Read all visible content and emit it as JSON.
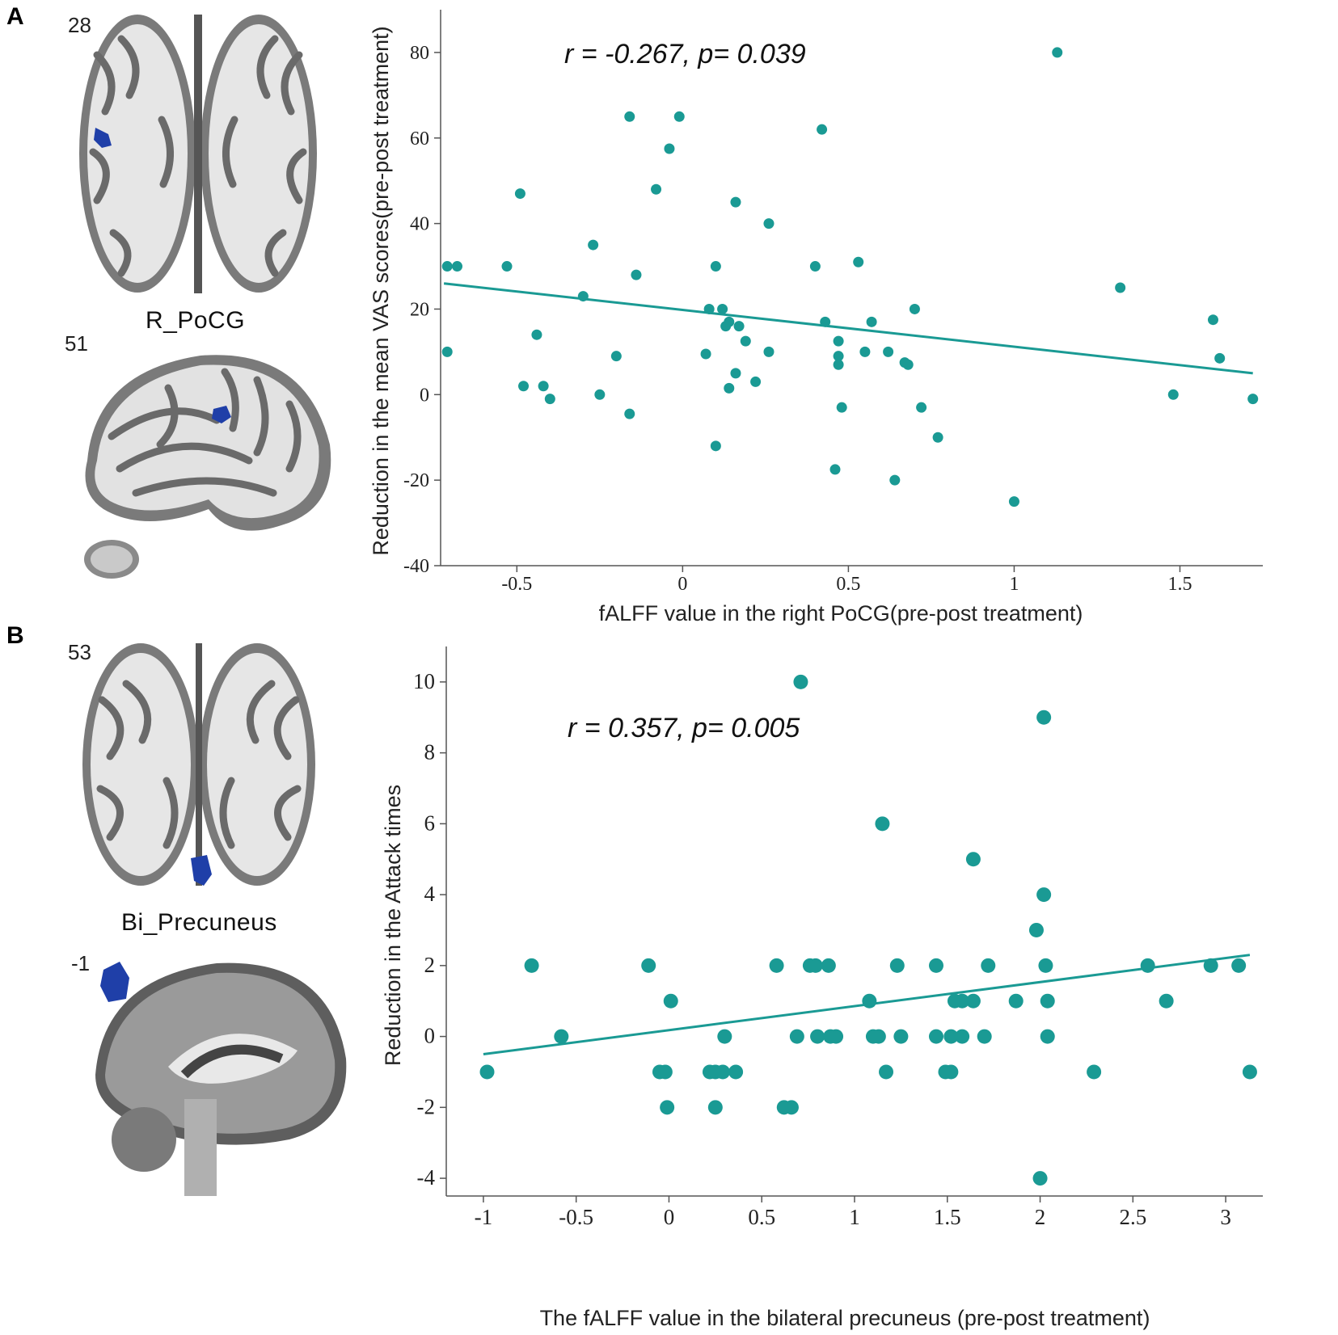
{
  "panels": {
    "a": {
      "letter": "A",
      "top_slice": "28",
      "region": "R_PoCG",
      "bottom_slice": "51"
    },
    "b": {
      "letter": "B",
      "top_slice": "53",
      "region": "Bi_Precuneus",
      "bottom_slice": "-1"
    }
  },
  "colors": {
    "point": "#1a9a94",
    "line": "#1a9a94",
    "roi": "#1f3fa8",
    "brain_gray": "#8d8d8d"
  },
  "chart_data": [
    {
      "type": "scatter",
      "title": "",
      "annotation": "r = -0.267, p= 0.039",
      "xlabel": "fALFF value in the right PoCG(pre-post treatment)",
      "ylabel": "Reduction in the mean VAS scores(pre-post treatment)",
      "xlim": [
        -0.73,
        1.75
      ],
      "ylim": [
        -40,
        90
      ],
      "xticks": [
        -0.5,
        0,
        0.5,
        1,
        1.5
      ],
      "xtick_labels": [
        "-0.5",
        "0",
        "0.5",
        "1",
        "1.5"
      ],
      "yticks": [
        -40,
        -20,
        0,
        20,
        40,
        60,
        80
      ],
      "ytick_labels": [
        "-40",
        "-20",
        "0",
        "20",
        "40",
        "60",
        "80"
      ],
      "grid": false,
      "fit_line": {
        "x": [
          -0.72,
          1.72
        ],
        "y": [
          26,
          5
        ]
      },
      "points": [
        [
          -0.71,
          30
        ],
        [
          -0.68,
          30
        ],
        [
          -0.53,
          30
        ],
        [
          -0.71,
          10
        ],
        [
          -0.49,
          47
        ],
        [
          -0.48,
          2
        ],
        [
          -0.44,
          14
        ],
        [
          -0.42,
          2
        ],
        [
          -0.4,
          -1
        ],
        [
          -0.3,
          23
        ],
        [
          -0.27,
          35
        ],
        [
          -0.25,
          0
        ],
        [
          -0.2,
          9
        ],
        [
          -0.16,
          65
        ],
        [
          -0.16,
          -4.5
        ],
        [
          -0.14,
          28
        ],
        [
          -0.08,
          48
        ],
        [
          -0.04,
          57.5
        ],
        [
          -0.01,
          65
        ],
        [
          0.07,
          9.5
        ],
        [
          0.08,
          20
        ],
        [
          0.1,
          30
        ],
        [
          0.1,
          -12
        ],
        [
          0.12,
          20
        ],
        [
          0.13,
          16
        ],
        [
          0.14,
          17
        ],
        [
          0.14,
          1.5
        ],
        [
          0.16,
          45
        ],
        [
          0.16,
          5
        ],
        [
          0.17,
          16
        ],
        [
          0.19,
          12.5
        ],
        [
          0.22,
          3
        ],
        [
          0.26,
          40
        ],
        [
          0.26,
          10
        ],
        [
          0.4,
          30
        ],
        [
          0.42,
          62
        ],
        [
          0.43,
          17
        ],
        [
          0.47,
          12.5
        ],
        [
          0.47,
          9
        ],
        [
          0.47,
          7
        ],
        [
          0.48,
          -3
        ],
        [
          0.46,
          -17.5
        ],
        [
          0.53,
          31
        ],
        [
          0.55,
          10
        ],
        [
          0.57,
          17
        ],
        [
          0.62,
          10
        ],
        [
          0.64,
          -20
        ],
        [
          0.67,
          7.5
        ],
        [
          0.68,
          7
        ],
        [
          0.7,
          20
        ],
        [
          0.72,
          -3
        ],
        [
          0.77,
          -10
        ],
        [
          1.0,
          -25
        ],
        [
          1.13,
          80
        ],
        [
          1.32,
          25
        ],
        [
          1.48,
          0
        ],
        [
          1.6,
          17.5
        ],
        [
          1.62,
          8.5
        ],
        [
          1.72,
          -1
        ]
      ]
    },
    {
      "type": "scatter",
      "title": "",
      "annotation": "r = 0.357, p= 0.005",
      "xlabel": "The fALFF value in the bilateral precuneus (pre-post treatment)",
      "ylabel": "Reduction in the Attack times",
      "xlim": [
        -1.2,
        3.2
      ],
      "ylim": [
        -4.5,
        11
      ],
      "xticks": [
        -1,
        -0.5,
        0,
        0.5,
        1,
        1.5,
        2,
        2.5,
        3
      ],
      "xtick_labels": [
        "-1",
        "-0.5",
        "0",
        "0.5",
        "1",
        "1.5",
        "2",
        "2.5",
        "3"
      ],
      "yticks": [
        -4,
        -2,
        0,
        2,
        4,
        6,
        8,
        10
      ],
      "ytick_labels": [
        "-4",
        "-2",
        "0",
        "2",
        "4",
        "6",
        "8",
        "10"
      ],
      "grid": false,
      "fit_line": {
        "x": [
          -1.0,
          3.13
        ],
        "y": [
          -0.5,
          2.3
        ]
      },
      "points": [
        [
          -0.98,
          -1
        ],
        [
          -0.74,
          2
        ],
        [
          -0.58,
          0
        ],
        [
          -0.11,
          2
        ],
        [
          -0.05,
          -1
        ],
        [
          -0.02,
          -1
        ],
        [
          -0.01,
          -2
        ],
        [
          0.01,
          1
        ],
        [
          0.22,
          -1
        ],
        [
          0.25,
          -2
        ],
        [
          0.25,
          -1
        ],
        [
          0.29,
          -1
        ],
        [
          0.3,
          0
        ],
        [
          0.36,
          -1
        ],
        [
          0.58,
          2
        ],
        [
          0.62,
          -2
        ],
        [
          0.66,
          -2
        ],
        [
          0.69,
          0
        ],
        [
          0.71,
          10
        ],
        [
          0.76,
          2
        ],
        [
          0.79,
          2
        ],
        [
          0.8,
          0
        ],
        [
          0.86,
          2
        ],
        [
          0.87,
          0
        ],
        [
          0.9,
          0
        ],
        [
          1.08,
          1
        ],
        [
          1.1,
          0
        ],
        [
          1.13,
          0
        ],
        [
          1.15,
          6
        ],
        [
          1.17,
          -1
        ],
        [
          1.23,
          2
        ],
        [
          1.25,
          0
        ],
        [
          1.44,
          2
        ],
        [
          1.44,
          0
        ],
        [
          1.49,
          -1
        ],
        [
          1.52,
          0
        ],
        [
          1.52,
          -1
        ],
        [
          1.54,
          1
        ],
        [
          1.58,
          1
        ],
        [
          1.58,
          0
        ],
        [
          1.64,
          1
        ],
        [
          1.64,
          5
        ],
        [
          1.7,
          0
        ],
        [
          1.72,
          2
        ],
        [
          1.87,
          1
        ],
        [
          1.98,
          3
        ],
        [
          2.0,
          -4
        ],
        [
          2.02,
          9
        ],
        [
          2.02,
          4
        ],
        [
          2.03,
          2
        ],
        [
          2.04,
          1
        ],
        [
          2.04,
          0
        ],
        [
          2.29,
          -1
        ],
        [
          2.58,
          2
        ],
        [
          2.68,
          1
        ],
        [
          2.92,
          2
        ],
        [
          3.07,
          2
        ],
        [
          3.13,
          -1
        ]
      ]
    }
  ]
}
